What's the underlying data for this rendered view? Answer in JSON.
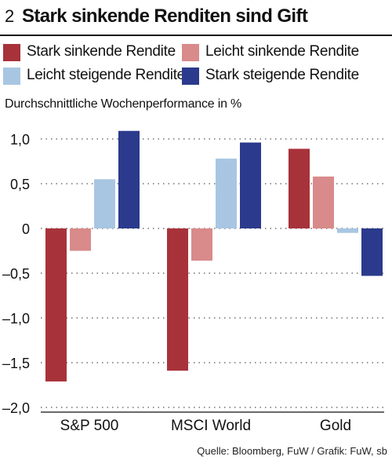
{
  "header": {
    "number": "2",
    "title": "Stark sinkende Renditen sind Gift"
  },
  "subtitle": "Durchschnittliche Wochenperformance in %",
  "source": "Quelle: Bloomberg, FuW / Grafik: FuW, sb",
  "colors": {
    "stark_sinkend": "#a8323a",
    "leicht_sinkend": "#d98a8a",
    "leicht_steigend": "#a8c6e2",
    "stark_steigend": "#2b3a8c"
  },
  "chart_data": {
    "type": "bar",
    "title": "Stark sinkende Renditen sind Gift",
    "ylabel": "Durchschnittliche Wochenperformance in %",
    "categories": [
      "S&P 500",
      "MSCI World",
      "Gold"
    ],
    "ylim": [
      -2.0,
      1.0
    ],
    "yticks": [
      1.0,
      0.5,
      0,
      -0.5,
      -1.0,
      -1.5,
      -2.0
    ],
    "ytick_labels": [
      "1,0",
      "0,5",
      "0",
      "–0,5",
      "–1,0",
      "–1,5",
      "–2,0"
    ],
    "grid": "dotted horizontal",
    "legend": "top",
    "series": [
      {
        "name": "Stark sinkende Rendite",
        "color": "#a8323a",
        "values": [
          -1.71,
          -1.59,
          0.89
        ]
      },
      {
        "name": "Leicht sinkende Rendite",
        "color": "#d98a8a",
        "values": [
          -0.25,
          -0.36,
          0.58
        ]
      },
      {
        "name": "Leicht steigende Rendite",
        "color": "#a8c6e2",
        "values": [
          0.55,
          0.78,
          -0.05
        ]
      },
      {
        "name": "Stark steigende Rendite",
        "color": "#2b3a8c",
        "values": [
          1.09,
          0.96,
          -0.53
        ]
      }
    ]
  }
}
